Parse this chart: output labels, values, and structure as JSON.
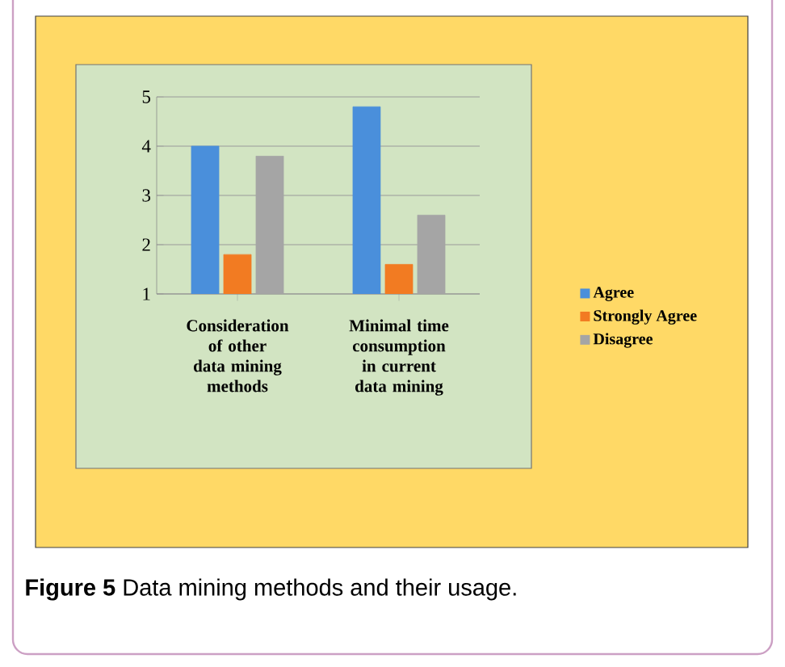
{
  "chart_data": {
    "type": "bar",
    "categories": [
      "Consideration of other data mining methods",
      "Minimal time consumption in current data mining"
    ],
    "series": [
      {
        "name": "Agree",
        "color": "#4a8fdb",
        "values": [
          4.0,
          4.8
        ]
      },
      {
        "name": "Strongly Agree",
        "color": "#f27b22",
        "values": [
          1.8,
          1.6
        ]
      },
      {
        "name": "Disagree",
        "color": "#a5a5a5",
        "values": [
          3.8,
          2.6
        ]
      }
    ],
    "ylim": [
      1,
      5
    ],
    "yticks": [
      1,
      2,
      3,
      4,
      5
    ],
    "grid": "y",
    "legend": "right",
    "annotations": [
      "**Figure 5** Data mining methods and their usage."
    ]
  }
}
